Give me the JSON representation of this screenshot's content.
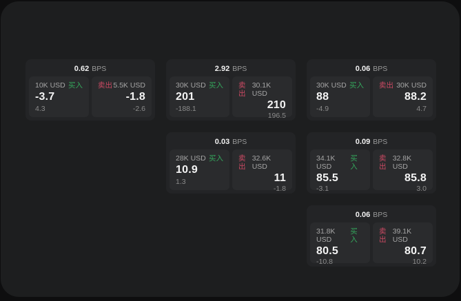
{
  "colors": {
    "backdrop": "#0e0e0f",
    "window_bg": "#1d1e1f",
    "card_bg": "#232426",
    "panel_bg": "#2a2b2d",
    "accent_green": "#34a65c",
    "accent_red": "#cb4a63"
  },
  "labels": {
    "buy": "买入",
    "sell": "卖出",
    "bps_unit": "BPS"
  },
  "cards": [
    {
      "col": 0,
      "row": 0,
      "bps": "0.62",
      "buy": {
        "size": "10K USD",
        "value": "-3.7",
        "sub": "4.3"
      },
      "sell": {
        "size": "5.5K USD",
        "value": "-1.8",
        "sub": "-2.6"
      }
    },
    {
      "col": 1,
      "row": 0,
      "bps": "2.92",
      "buy": {
        "size": "30K USD",
        "value": "201",
        "sub": "-188.1"
      },
      "sell": {
        "size": "30.1K USD",
        "value": "210",
        "sub": "196.5"
      }
    },
    {
      "col": 2,
      "row": 0,
      "bps": "0.06",
      "buy": {
        "size": "30K USD",
        "value": "88",
        "sub": "-4.9"
      },
      "sell": {
        "size": "30K USD",
        "value": "88.2",
        "sub": "4.7"
      }
    },
    {
      "col": 1,
      "row": 1,
      "bps": "0.03",
      "buy": {
        "size": "28K USD",
        "value": "10.9",
        "sub": "1.3"
      },
      "sell": {
        "size": "32.6K USD",
        "value": "11",
        "sub": "-1.8"
      }
    },
    {
      "col": 2,
      "row": 1,
      "bps": "0.09",
      "buy": {
        "size": "34.1K USD",
        "value": "85.5",
        "sub": "-3.1"
      },
      "sell": {
        "size": "32.8K USD",
        "value": "85.8",
        "sub": "3.0"
      }
    },
    {
      "col": 2,
      "row": 2,
      "bps": "0.06",
      "buy": {
        "size": "31.8K USD",
        "value": "80.5",
        "sub": "-10.8"
      },
      "sell": {
        "size": "39.1K USD",
        "value": "80.7",
        "sub": "10.2"
      }
    }
  ]
}
